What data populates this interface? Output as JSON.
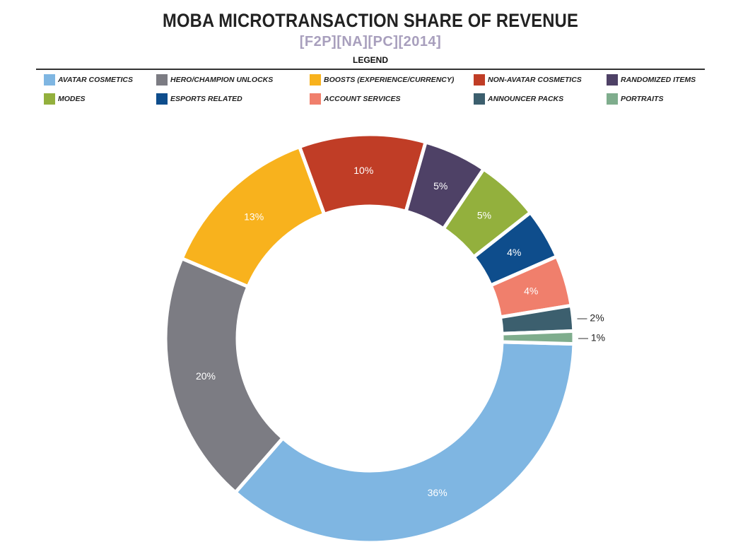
{
  "title": "MOBA MICROTRANSACTION SHARE OF REVENUE",
  "subtitle": "[F2P][NA][PC][2014]",
  "legend_title": "LEGEND",
  "chart_data": {
    "type": "pie",
    "title": "MOBA MICROTRANSACTION SHARE OF REVENUE",
    "subtitle": "[F2P][NA][PC][2014]",
    "donut": true,
    "legend_placement": "top",
    "series": [
      {
        "name": "AVATAR COSMETICS",
        "value": 36,
        "label": "36%",
        "color": "#7fb6e2",
        "label_color": "#ffffff"
      },
      {
        "name": "HERO/CHAMPION UNLOCKS",
        "value": 20,
        "label": "20%",
        "color": "#7c7c83",
        "label_color": "#ffffff"
      },
      {
        "name": "BOOSTS (EXPERIENCE/CURRENCY)",
        "value": 13,
        "label": "13%",
        "color": "#f8b21d",
        "label_color": "#ffffff"
      },
      {
        "name": "NON-AVATAR COSMETICS",
        "value": 10,
        "label": "10%",
        "color": "#c03d26",
        "label_color": "#ffffff"
      },
      {
        "name": "RANDOMIZED ITEMS",
        "value": 5,
        "label": "5%",
        "color": "#4e4166",
        "label_color": "#ffffff"
      },
      {
        "name": "MODES",
        "value": 5,
        "label": "5%",
        "color": "#93b03d",
        "label_color": "#ffffff"
      },
      {
        "name": "ESPORTS RELATED",
        "value": 4,
        "label": "4%",
        "color": "#0e4d8c",
        "label_color": "#ffffff"
      },
      {
        "name": "ACCOUNT SERVICES",
        "value": 4,
        "label": "4%",
        "color": "#f07f6c",
        "label_color": "#ffffff"
      },
      {
        "name": "ANNOUNCER PACKS",
        "value": 2,
        "label": "— 2%",
        "color": "#3c5f6e",
        "label_color": "#222222"
      },
      {
        "name": "PORTRAITS",
        "value": 1,
        "label": "— 1%",
        "color": "#7fad8d",
        "label_color": "#222222"
      }
    ]
  }
}
